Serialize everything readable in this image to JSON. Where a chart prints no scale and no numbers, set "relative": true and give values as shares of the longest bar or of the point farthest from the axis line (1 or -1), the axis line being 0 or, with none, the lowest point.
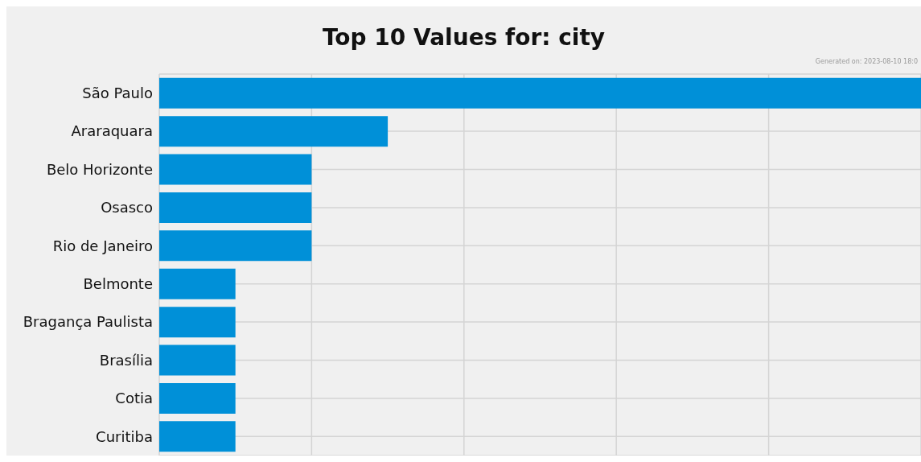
{
  "chart_data": {
    "type": "bar",
    "orientation": "horizontal",
    "relative": true,
    "title": "Top 10 Values for: city",
    "annotations": [
      "Generated on: 2023-08-10 18:0"
    ],
    "categories": [
      "São Paulo",
      "Araraquara",
      "Belo Horizonte",
      "Osasco",
      "Rio de Janeiro",
      "Belmonte",
      "Bragança Paulista",
      "Brasília",
      "Cotia",
      "Curitiba"
    ],
    "values": [
      1,
      0.3,
      0.2,
      0.2,
      0.2,
      0.1,
      0.1,
      0.1,
      0.1,
      0.1
    ],
    "color": "#0090d8",
    "grid": true
  }
}
